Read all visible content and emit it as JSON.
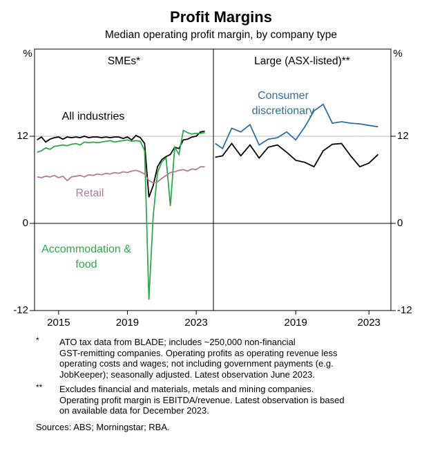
{
  "header": {
    "title": "Profit Margins",
    "subtitle": "Median operating profit margin, by company type"
  },
  "chart_data": [
    {
      "type": "line",
      "title": "SMEs*",
      "y_unit": "%",
      "xlim": [
        2013.6,
        2024.0
      ],
      "xticks": [
        2015,
        2019,
        2023
      ],
      "ylim": [
        -12,
        24
      ],
      "yticks": [
        -12,
        0,
        12
      ],
      "grid": true,
      "x": [
        2013.75,
        2014.0,
        2014.25,
        2014.5,
        2014.75,
        2015.0,
        2015.25,
        2015.5,
        2015.75,
        2016.0,
        2016.25,
        2016.5,
        2016.75,
        2017.0,
        2017.25,
        2017.5,
        2017.75,
        2018.0,
        2018.25,
        2018.5,
        2018.75,
        2019.0,
        2019.25,
        2019.5,
        2019.75,
        2020.0,
        2020.25,
        2020.5,
        2020.75,
        2021.0,
        2021.25,
        2021.5,
        2021.75,
        2022.0,
        2022.25,
        2022.5,
        2022.75,
        2023.0,
        2023.25,
        2023.5
      ],
      "series": [
        {
          "name": "All industries",
          "color": "#000000",
          "values": [
            11.5,
            11.9,
            11.2,
            11.6,
            11.8,
            11.9,
            11.6,
            11.9,
            11.8,
            11.9,
            11.8,
            12.0,
            11.8,
            11.9,
            11.9,
            11.8,
            11.9,
            11.8,
            11.9,
            11.9,
            11.7,
            11.9,
            11.5,
            12.1,
            11.8,
            11.0,
            3.6,
            5.2,
            7.8,
            8.8,
            9.2,
            9.5,
            10.5,
            10.3,
            11.5,
            11.6,
            11.9,
            12.0,
            12.6,
            12.7
          ]
        },
        {
          "name": "Accommodation & food",
          "color": "#2ea84a",
          "values": [
            9.8,
            10.0,
            10.4,
            10.2,
            10.6,
            10.7,
            10.8,
            10.7,
            10.9,
            11.0,
            10.8,
            11.2,
            11.1,
            11.2,
            11.1,
            11.2,
            11.3,
            11.4,
            11.2,
            11.3,
            11.4,
            11.5,
            11.3,
            11.4,
            11.3,
            10.0,
            -10.5,
            1.0,
            7.0,
            8.5,
            9.0,
            2.4,
            10.5,
            9.5,
            12.8,
            12.5,
            12.3,
            12.4,
            12.4,
            12.5
          ]
        },
        {
          "name": "Retail",
          "color": "#b27a9f",
          "values": [
            6.4,
            6.3,
            6.5,
            6.4,
            6.6,
            6.3,
            6.5,
            5.9,
            6.4,
            6.5,
            6.6,
            6.4,
            6.7,
            6.6,
            6.8,
            6.7,
            6.9,
            6.8,
            7.0,
            6.9,
            7.1,
            7.0,
            7.2,
            7.3,
            7.1,
            6.8,
            5.9,
            5.6,
            5.7,
            6.2,
            6.6,
            7.0,
            7.1,
            7.3,
            7.4,
            7.2,
            7.5,
            7.4,
            7.8,
            7.8
          ]
        }
      ]
    },
    {
      "type": "line",
      "title": "Large (ASX-listed)**",
      "y_unit": "%",
      "xlim": [
        2014.5,
        2024.2
      ],
      "xticks": [
        2019,
        2023
      ],
      "ylim": [
        -12,
        24
      ],
      "yticks": [
        -12,
        0,
        12
      ],
      "grid": true,
      "x": [
        2014.6,
        2015.0,
        2015.5,
        2016.0,
        2016.5,
        2017.0,
        2017.5,
        2018.0,
        2018.5,
        2019.0,
        2019.5,
        2020.0,
        2020.5,
        2021.0,
        2021.5,
        2022.0,
        2022.5,
        2023.0,
        2023.5
      ],
      "series": [
        {
          "name": "Consumer discretionary",
          "color": "#2f6e9e",
          "values": [
            11.0,
            10.3,
            13.1,
            12.6,
            13.6,
            10.8,
            11.6,
            11.8,
            12.6,
            11.5,
            13.3,
            15.5,
            16.4,
            13.8,
            14.0,
            13.8,
            13.7,
            13.5,
            13.3
          ]
        },
        {
          "name": null,
          "color": "#000000",
          "values": [
            9.1,
            9.3,
            11.0,
            9.3,
            10.8,
            9.0,
            10.5,
            10.8,
            9.8,
            8.7,
            8.4,
            7.8,
            10.0,
            10.9,
            11.0,
            9.3,
            7.8,
            8.3,
            9.5
          ]
        }
      ]
    }
  ],
  "notes": [
    {
      "symbol": "*",
      "lines": [
        "ATO tax data from BLADE; includes ~250,000 non-financial",
        "GST-remitting companies. Operating profits as operating revenue less",
        "operating costs and wages; not including government payments (e.g.",
        "JobKeeper); seasonally adjusted. Latest observation June 2023."
      ]
    },
    {
      "symbol": "**",
      "lines": [
        "Excludes financial and materials, metals and mining companies.",
        "Operating profit margin is EBITDA/revenue. Latest observation is based",
        "on available data for December 2023."
      ]
    }
  ],
  "sources": "Sources: ABS; Morningstar; RBA."
}
